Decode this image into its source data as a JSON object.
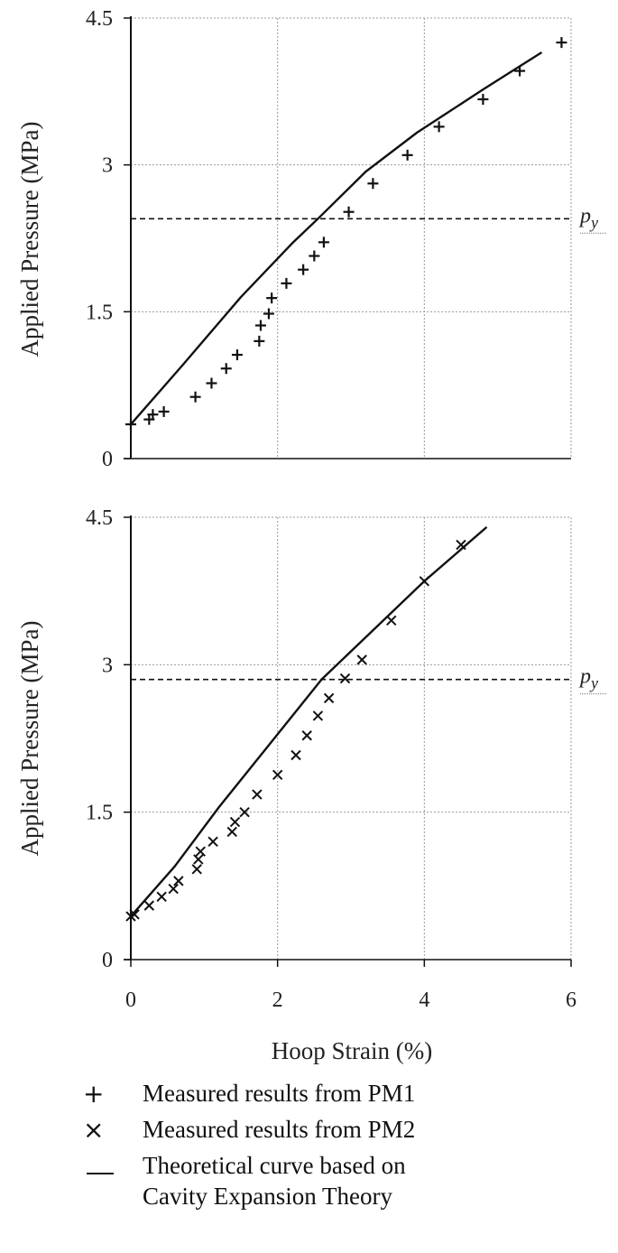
{
  "chart_data": [
    {
      "type": "scatter",
      "ylabel": "Applied Pressure (MPa)",
      "xlim": [
        0,
        6
      ],
      "ylim": [
        0,
        4.5
      ],
      "yticks": [
        "0",
        "1.5",
        "3",
        "4.5"
      ],
      "grid": true,
      "threshold": {
        "label": "py",
        "y": 2.45
      },
      "series": [
        {
          "name": "Measured results from PM1",
          "marker": "plus",
          "x": [
            0.0,
            0.25,
            0.3,
            0.45,
            0.88,
            1.1,
            1.3,
            1.45,
            1.75,
            1.77,
            1.88,
            1.92,
            2.12,
            2.35,
            2.5,
            2.63,
            2.97,
            3.3,
            3.77,
            4.2,
            4.8,
            5.3,
            5.87
          ],
          "y": [
            0.35,
            0.4,
            0.45,
            0.48,
            0.63,
            0.77,
            0.92,
            1.06,
            1.2,
            1.36,
            1.48,
            1.64,
            1.79,
            1.93,
            2.07,
            2.21,
            2.52,
            2.81,
            3.1,
            3.39,
            3.67,
            3.96,
            4.25
          ]
        },
        {
          "name": "Theoretical curve based on Cavity Expansion Theory",
          "marker": "line",
          "x": [
            0.0,
            0.7,
            1.5,
            2.2,
            2.55,
            3.2,
            3.9,
            4.8,
            5.6
          ],
          "y": [
            0.35,
            0.95,
            1.65,
            2.2,
            2.45,
            2.93,
            3.33,
            3.77,
            4.15
          ]
        }
      ]
    },
    {
      "type": "scatter",
      "xlabel": "Hoop Strain (%)",
      "ylabel": "Applied Pressure (MPa)",
      "xlim": [
        0,
        6
      ],
      "ylim": [
        0,
        4.5
      ],
      "xticks": [
        "0",
        "2",
        "4",
        "6"
      ],
      "yticks": [
        "0",
        "1.5",
        "3",
        "4.5"
      ],
      "grid": true,
      "threshold": {
        "label": "py",
        "y": 2.85
      },
      "series": [
        {
          "name": "Measured results from PM2",
          "marker": "cross",
          "x": [
            0.0,
            0.05,
            0.25,
            0.42,
            0.58,
            0.65,
            0.9,
            0.92,
            0.95,
            1.12,
            1.38,
            1.42,
            1.55,
            1.72,
            2.0,
            2.25,
            2.4,
            2.55,
            2.7,
            2.92,
            3.15,
            3.55,
            4.0,
            4.5
          ],
          "y": [
            0.44,
            0.46,
            0.55,
            0.64,
            0.72,
            0.8,
            0.92,
            1.02,
            1.1,
            1.2,
            1.3,
            1.4,
            1.5,
            1.68,
            1.88,
            2.08,
            2.28,
            2.48,
            2.66,
            2.86,
            3.05,
            3.45,
            3.85,
            4.22
          ]
        },
        {
          "name": "Theoretical curve based on Cavity Expansion Theory",
          "marker": "line",
          "x": [
            0.0,
            0.6,
            1.2,
            1.9,
            2.6,
            3.3,
            4.0,
            4.85
          ],
          "y": [
            0.44,
            0.95,
            1.55,
            2.2,
            2.85,
            3.35,
            3.85,
            4.4
          ]
        }
      ]
    }
  ],
  "legend": {
    "items": [
      {
        "symbol": "+",
        "label": "Measured results from PM1"
      },
      {
        "symbol": "×",
        "label": "Measured results from PM2"
      },
      {
        "symbol": "line",
        "label": "Theoretical curve based on",
        "label2": "Cavity Expansion Theory"
      }
    ]
  }
}
